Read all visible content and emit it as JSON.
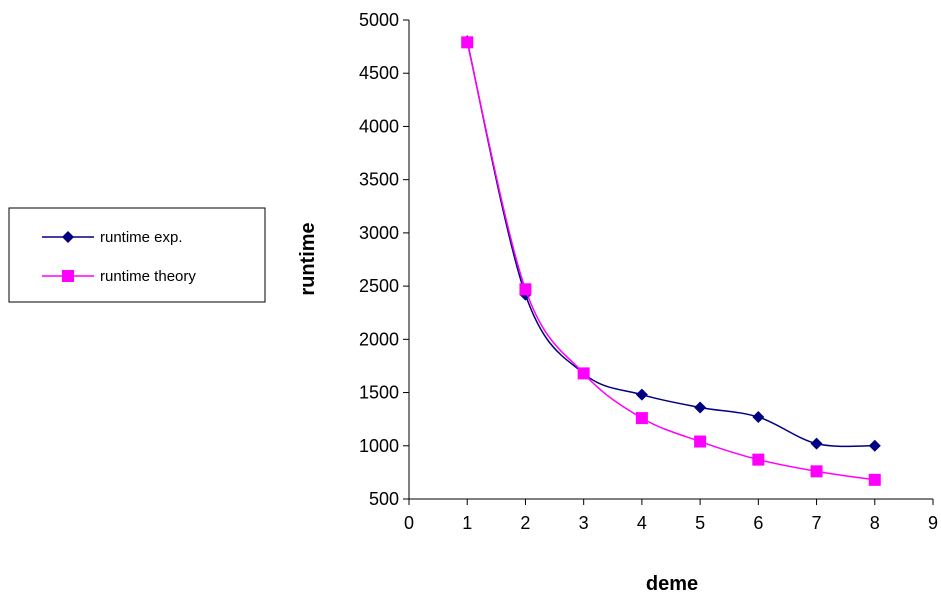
{
  "chart_data": {
    "type": "line",
    "xlabel": "deme",
    "ylabel": "runtime",
    "xlim": [
      0,
      9
    ],
    "ylim": [
      500,
      5000
    ],
    "xticks": [
      "0",
      "1",
      "2",
      "3",
      "4",
      "5",
      "6",
      "7",
      "8",
      "9"
    ],
    "yticks": [
      "500",
      "1000",
      "1500",
      "2000",
      "2500",
      "3000",
      "3500",
      "4000",
      "4500",
      "5000"
    ],
    "grid": false,
    "legend_position": "left",
    "series": [
      {
        "name": "runtime exp.",
        "color": "#000080",
        "marker": "diamond",
        "x": [
          1,
          2,
          3,
          4,
          5,
          6,
          7,
          8
        ],
        "y": [
          4800,
          2420,
          1680,
          1480,
          1360,
          1270,
          1020,
          1000
        ]
      },
      {
        "name": "runtime theory",
        "color": "#ff00ff",
        "marker": "square",
        "x": [
          1,
          2,
          3,
          4,
          5,
          6,
          7,
          8
        ],
        "y": [
          4790,
          2470,
          1680,
          1260,
          1040,
          870,
          760,
          680
        ]
      }
    ]
  }
}
